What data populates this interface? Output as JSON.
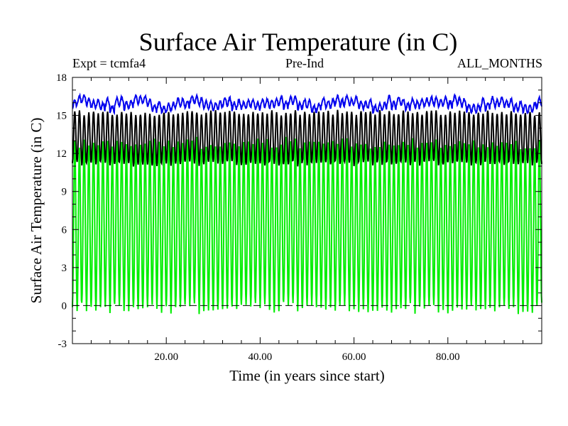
{
  "header": {
    "title": "Surface Air Temperature (in C)",
    "expt": "Expt = tcmfa4",
    "period": "Pre-Ind",
    "months": "ALL_MONTHS"
  },
  "chart_data": {
    "type": "line",
    "title": "Surface Air Temperature (in C)",
    "xlabel": "Time (in years since start)",
    "ylabel": "Surface Air Temperature (in C)",
    "xlim": [
      0,
      100
    ],
    "ylim": [
      -3,
      18
    ],
    "xticks": [
      20,
      40,
      60,
      80
    ],
    "xtick_labels": [
      "20.00",
      "40.00",
      "60.00",
      "80.00"
    ],
    "yticks": [
      -3,
      0,
      3,
      6,
      9,
      12,
      15,
      18
    ],
    "ytick_labels": [
      "-3",
      "0",
      "3",
      "6",
      "9",
      "12",
      "15",
      "18"
    ],
    "reference_line": {
      "y": 0,
      "style": "dashed"
    },
    "series": [
      {
        "name": "green",
        "color": "#00ee00",
        "mean": 6.3,
        "seasonal_amplitude": 6.5,
        "min_approx": -0.8,
        "max_approx": 13.5,
        "interannual_noise": 0.4
      },
      {
        "name": "black",
        "color": "#000000",
        "mean": 13.2,
        "seasonal_amplitude": 2.0,
        "min_approx": 10.9,
        "max_approx": 15.5,
        "interannual_noise": 0.2
      },
      {
        "name": "blue",
        "color": "#0000ee",
        "mean": 15.9,
        "seasonal_amplitude": 0.3,
        "min_approx": 15.2,
        "max_approx": 16.6,
        "interannual_noise": 0.3
      }
    ]
  }
}
